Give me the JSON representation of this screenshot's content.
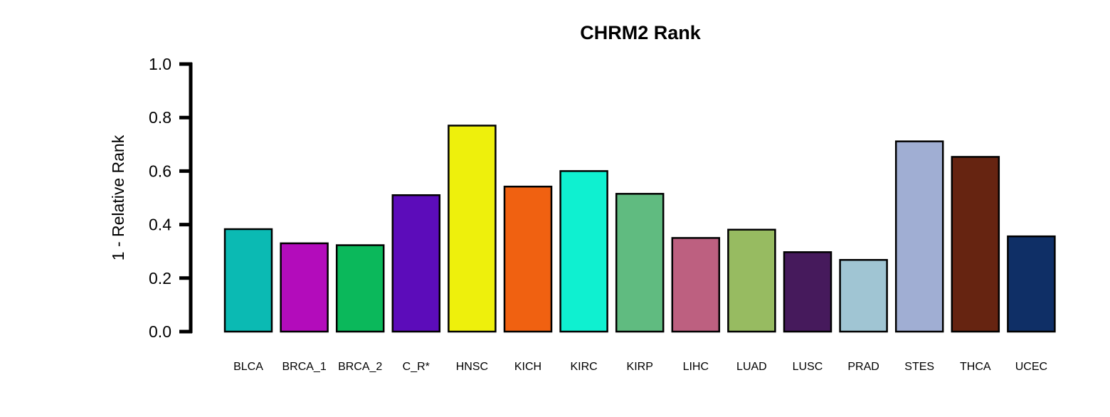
{
  "chart_data": {
    "type": "bar",
    "title": "CHRM2 Rank",
    "xlabel": "",
    "ylabel": "1 - Relative Rank",
    "ylim": [
      0,
      1
    ],
    "yticks": [
      "0.0",
      "0.2",
      "0.4",
      "0.6",
      "0.8",
      "1.0"
    ],
    "grid": false,
    "legend": "none",
    "categories": [
      "BLCA",
      "BRCA_1",
      "BRCA_2",
      "C_R*",
      "HNSC",
      "KICH",
      "KIRC",
      "KIRP",
      "LIHC",
      "LUAD",
      "LUSC",
      "PRAD",
      "STES",
      "THCA",
      "UCEC"
    ],
    "values": [
      0.383,
      0.33,
      0.323,
      0.51,
      0.77,
      0.542,
      0.6,
      0.515,
      0.35,
      0.381,
      0.297,
      0.268,
      0.711,
      0.653,
      0.356
    ],
    "colors": [
      "#0bbab3",
      "#b30cbb",
      "#0bb85b",
      "#5c0cba",
      "#eef00c",
      "#f06111",
      "#0ff0d0",
      "#60bb80",
      "#bd6080",
      "#97bb61",
      "#461a5c",
      "#a0c5d3",
      "#a0aed3",
      "#662411",
      "#0f2f66"
    ]
  }
}
